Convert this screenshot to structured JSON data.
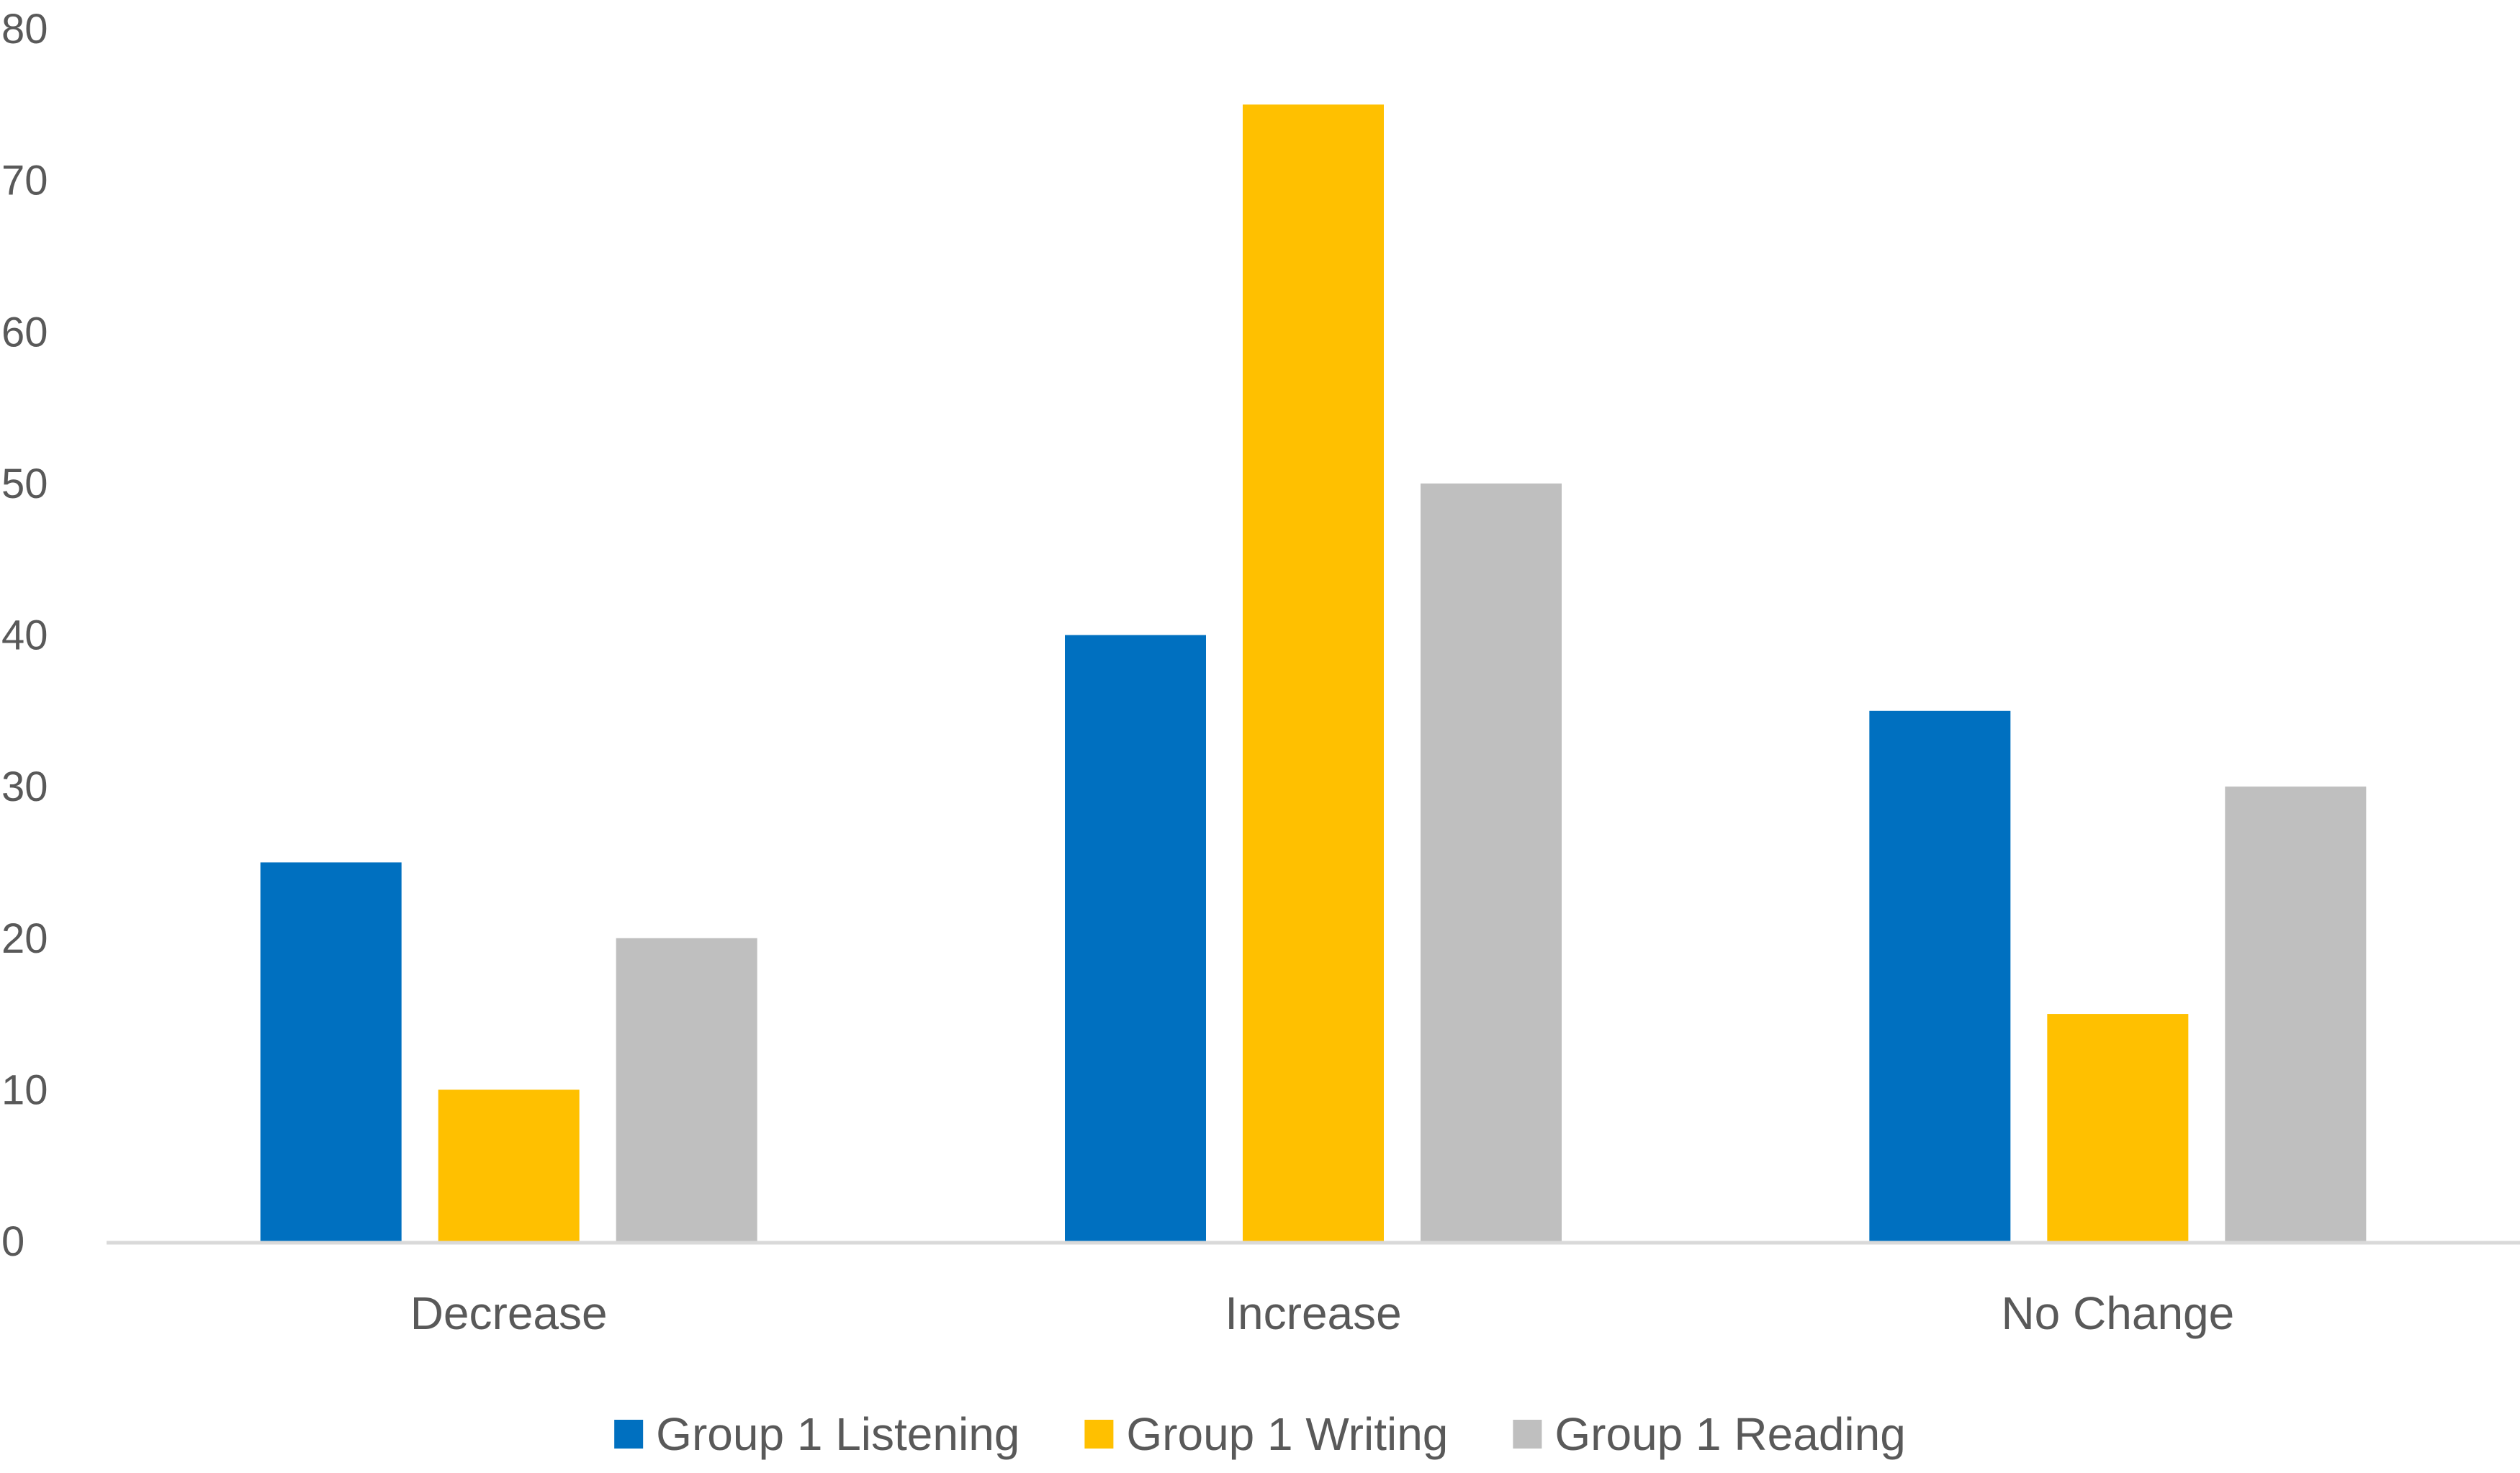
{
  "chart_data": {
    "type": "bar",
    "categories": [
      "Decrease",
      "Increase",
      "No Change"
    ],
    "series": [
      {
        "name": "Group 1 Listening",
        "color": "#0070C0",
        "values": [
          25,
          40,
          35
        ]
      },
      {
        "name": "Group 1 Writing",
        "color": "#FFC000",
        "values": [
          10,
          75,
          15
        ]
      },
      {
        "name": "Group 1 Reading",
        "color": "#BFBFBF",
        "values": [
          20,
          50,
          30
        ]
      }
    ],
    "ylim": [
      0,
      80
    ],
    "yticks": [
      0,
      10,
      20,
      30,
      40,
      50,
      60,
      70,
      80
    ],
    "grid": false,
    "legend": "bottom-center",
    "axis_color": "#D9D9D9",
    "text_color": "#595959"
  }
}
